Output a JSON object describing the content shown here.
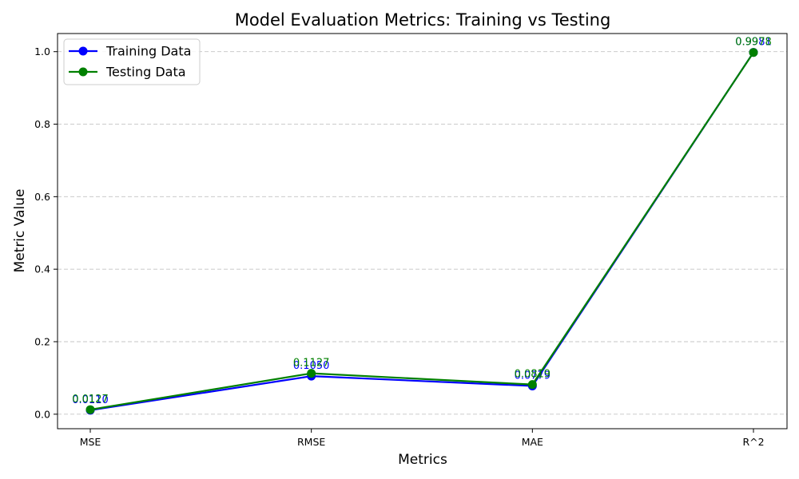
{
  "chart_data": {
    "type": "line",
    "title": "Model Evaluation Metrics: Training vs Testing",
    "xlabel": "Metrics",
    "ylabel": "Metric Value",
    "categories": [
      "MSE",
      "RMSE",
      "MAE",
      "R^2"
    ],
    "ylim": [
      -0.04,
      1.05
    ],
    "yticks": [
      0.0,
      0.2,
      0.4,
      0.6,
      0.8,
      1.0
    ],
    "ytick_labels": [
      "0.0",
      "0.2",
      "0.4",
      "0.6",
      "0.8",
      "1.0"
    ],
    "grid": "y-dashed",
    "legend_position": "top-left",
    "series": [
      {
        "name": "Training Data",
        "color": "#0000ff",
        "values": [
          0.011,
          0.105,
          0.0779,
          0.9981
        ],
        "labels": [
          "0.0110",
          "0.1050",
          "0.0779",
          "0.9981"
        ]
      },
      {
        "name": "Testing Data",
        "color": "#008000",
        "values": [
          0.0127,
          0.1127,
          0.0819,
          0.9978
        ],
        "labels": [
          "0.0127",
          "0.1127",
          "0.0819",
          "0.9978"
        ]
      }
    ]
  }
}
